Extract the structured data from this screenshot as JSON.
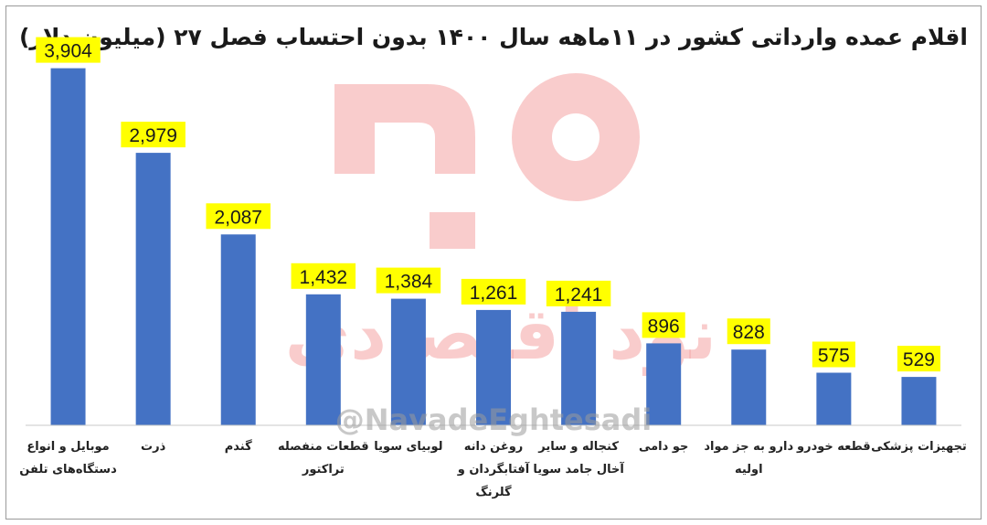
{
  "chart_data": {
    "type": "bar",
    "title": "اقلام عمده وارداتی کشور در ۱۱ماهه سال ۱۴۰۰ بدون احتساب فصل ۲۷ (میلیون دلار)",
    "categories": [
      [
        "موبایل و انواع",
        "دستگاه‌های تلفن"
      ],
      [
        "ذرت"
      ],
      [
        "گندم"
      ],
      [
        "قطعات منفصله",
        "تراکتور"
      ],
      [
        "لوبیای سویا"
      ],
      [
        "روغن دانه",
        "آفتابگردان و",
        "گلرنگ"
      ],
      [
        "کنجاله و سایر",
        "آخال جامد سویا"
      ],
      [
        "جو دامی"
      ],
      [
        "دارو به جز مواد",
        "اولیه"
      ],
      [
        "قطعه خودرو"
      ],
      [
        "تجهیزات پزشکی"
      ]
    ],
    "values": [
      3904,
      2979,
      2087,
      1432,
      1384,
      1261,
      1241,
      896,
      828,
      575,
      529
    ],
    "data_labels": [
      "3,904",
      "2,979",
      "2,087",
      "1,432",
      "1,384",
      "1,261",
      "1,241",
      "896",
      "828",
      "575",
      "529"
    ],
    "ylim": [
      0,
      4000
    ],
    "grid": false,
    "bar_color": "#4472C4",
    "label_highlight_color": "#FFFF00"
  },
  "watermark": {
    "handle": "@NavadeEghtesadi",
    "brand_text": "نود اقتصادی",
    "color": "#F4A3A3"
  }
}
